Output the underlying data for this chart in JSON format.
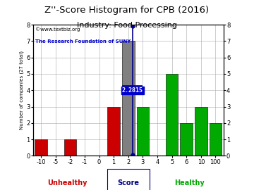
{
  "title": "Z''-Score Histogram for CPB (2016)",
  "subtitle": "Industry: Food Processing",
  "watermark1": "©www.textbiz.org",
  "watermark2": "The Research Foundation of SUNY",
  "xlabel_center": "Score",
  "xlabel_left": "Unhealthy",
  "xlabel_right": "Healthy",
  "ylabel": "Number of companies (27 total)",
  "annotation": "2.2815",
  "annotation_value": 2.2815,
  "ylim": [
    0,
    8
  ],
  "yticks": [
    0,
    1,
    2,
    3,
    4,
    5,
    6,
    7,
    8
  ],
  "bar_data": [
    {
      "x": -10,
      "height": 1,
      "color": "#cc0000"
    },
    {
      "x": -2,
      "height": 1,
      "color": "#cc0000"
    },
    {
      "x": 1,
      "height": 3,
      "color": "#cc0000"
    },
    {
      "x": 2,
      "height": 7,
      "color": "#808080"
    },
    {
      "x": 3,
      "height": 3,
      "color": "#00aa00"
    },
    {
      "x": 5,
      "height": 5,
      "color": "#00aa00"
    },
    {
      "x": 6,
      "height": 2,
      "color": "#00aa00"
    },
    {
      "x": 10,
      "height": 3,
      "color": "#00aa00"
    },
    {
      "x": 100,
      "height": 2,
      "color": "#00aa00"
    }
  ],
  "pos_map": {
    "-10": 0,
    "-5": 1,
    "-2": 2,
    "-1": 3,
    "0": 4,
    "1": 5,
    "2": 6,
    "3": 7,
    "4": 8,
    "5": 9,
    "6": 10,
    "10": 11,
    "100": 12
  },
  "xtick_labels": [
    "-10",
    "-5",
    "-2",
    "-1",
    "0",
    "1",
    "2",
    "3",
    "4",
    "5",
    "6",
    "10",
    "100"
  ],
  "xtick_values": [
    -10,
    -5,
    -2,
    -1,
    0,
    1,
    2,
    3,
    4,
    5,
    6,
    10,
    100
  ],
  "bg_color": "#ffffff",
  "grid_color": "#aaaaaa",
  "title_color": "#000000",
  "subtitle_color": "#000000",
  "unhealthy_color": "#cc0000",
  "healthy_color": "#00aa00",
  "score_color": "#000080",
  "watermark1_color": "#000000",
  "watermark2_color": "#0000cc",
  "vline_color": "#00008b",
  "annotation_box_facecolor": "#0000cc",
  "annotation_text_color": "#ffffff",
  "title_fontsize": 9.5,
  "subtitle_fontsize": 8,
  "axis_fontsize": 6,
  "label_fontsize": 7,
  "watermark_fontsize": 5,
  "ylabel_fontsize": 5,
  "bar_width": 0.85
}
